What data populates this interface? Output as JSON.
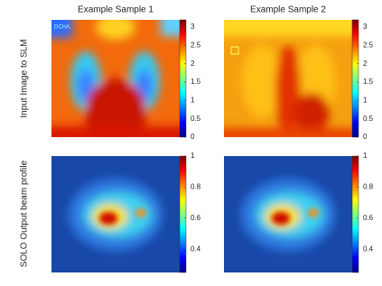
{
  "columns": [
    "Example Sample 1",
    "Example Sample 2"
  ],
  "image_text": "DCHA.",
  "rows": [
    {
      "label": "Input Image to SLM",
      "colorbar": {
        "lim": [
          0,
          3.2
        ],
        "ticks": [
          0,
          0.5,
          1,
          1.5,
          2,
          2.5,
          3
        ]
      }
    },
    {
      "label": "SOLO Output beam profile",
      "colorbar": {
        "lim": [
          0.25,
          1
        ],
        "ticks": [
          0.4,
          0.6,
          0.8,
          1
        ]
      }
    }
  ]
}
